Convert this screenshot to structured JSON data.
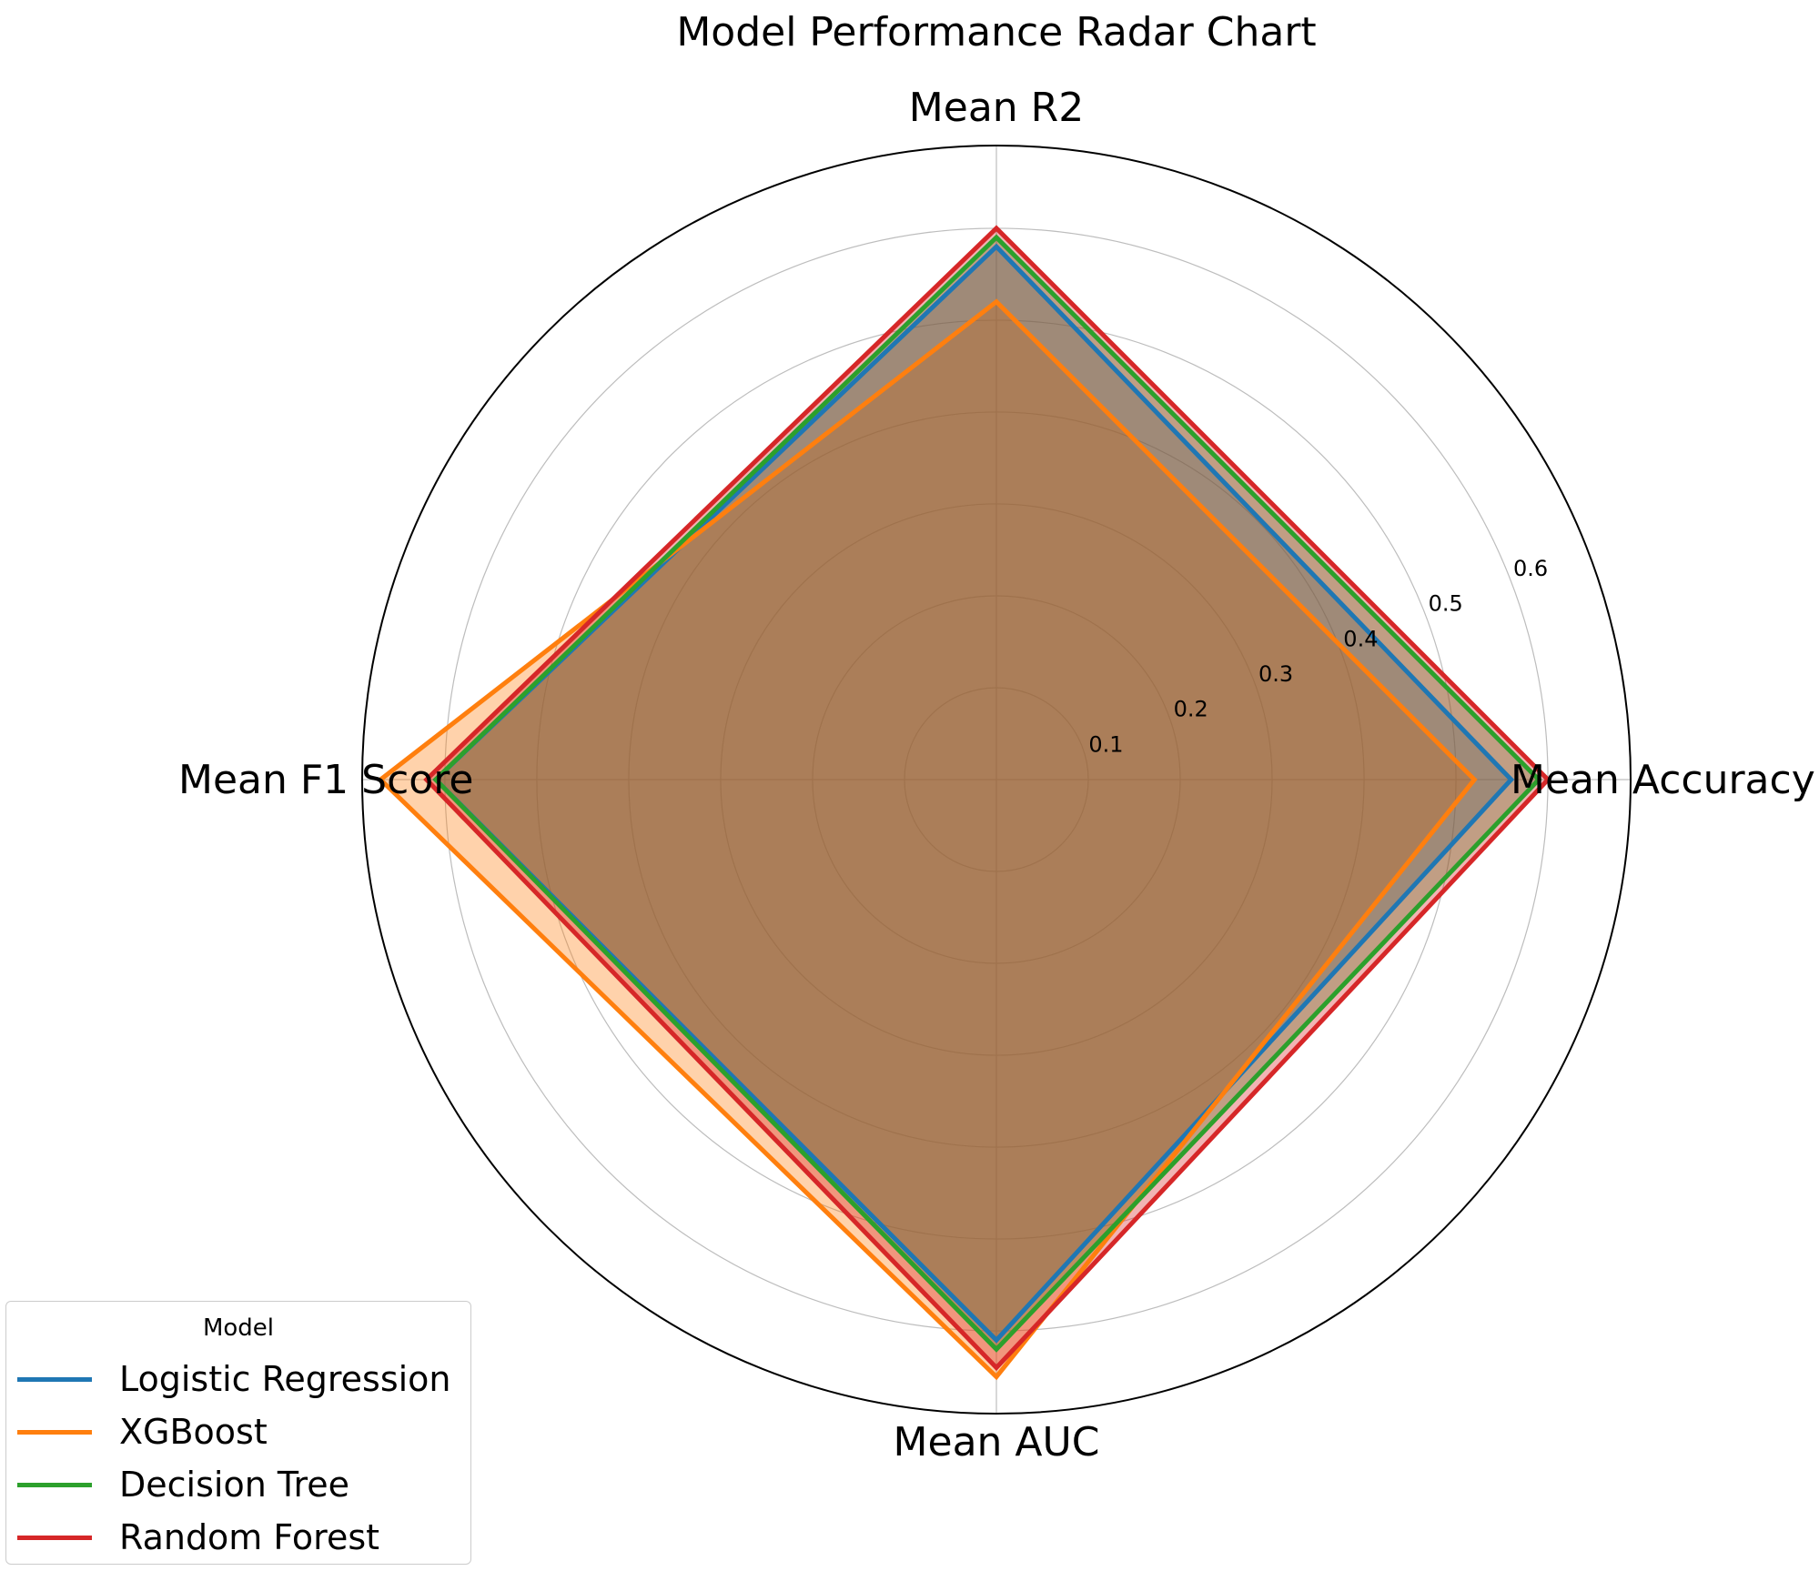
{
  "chart_data": {
    "type": "radar",
    "title": "Model Performance Radar Chart",
    "axes": [
      "Mean Accuracy",
      "Mean R2",
      "Mean F1 Score",
      "Mean AUC"
    ],
    "radial_ticks": [
      "0.1",
      "0.2",
      "0.3",
      "0.4",
      "0.5",
      "0.6"
    ],
    "radial_tick_values": [
      0.1,
      0.2,
      0.3,
      0.4,
      0.5,
      0.6
    ],
    "rlim": [
      0,
      0.69
    ],
    "grid": true,
    "series": [
      {
        "name": "Logistic Regression",
        "color": "#1f77b4",
        "values": [
          0.56,
          0.58,
          0.61,
          0.61
        ]
      },
      {
        "name": "XGBoost",
        "color": "#ff7f0e",
        "values": [
          0.52,
          0.52,
          0.67,
          0.65
        ]
      },
      {
        "name": "Decision Tree",
        "color": "#2ca02c",
        "values": [
          0.59,
          0.59,
          0.61,
          0.62
        ]
      },
      {
        "name": "Random Forest",
        "color": "#d62728",
        "values": [
          0.6,
          0.6,
          0.62,
          0.64
        ]
      }
    ],
    "legend": {
      "title": "Model",
      "position": "lower-left"
    }
  }
}
